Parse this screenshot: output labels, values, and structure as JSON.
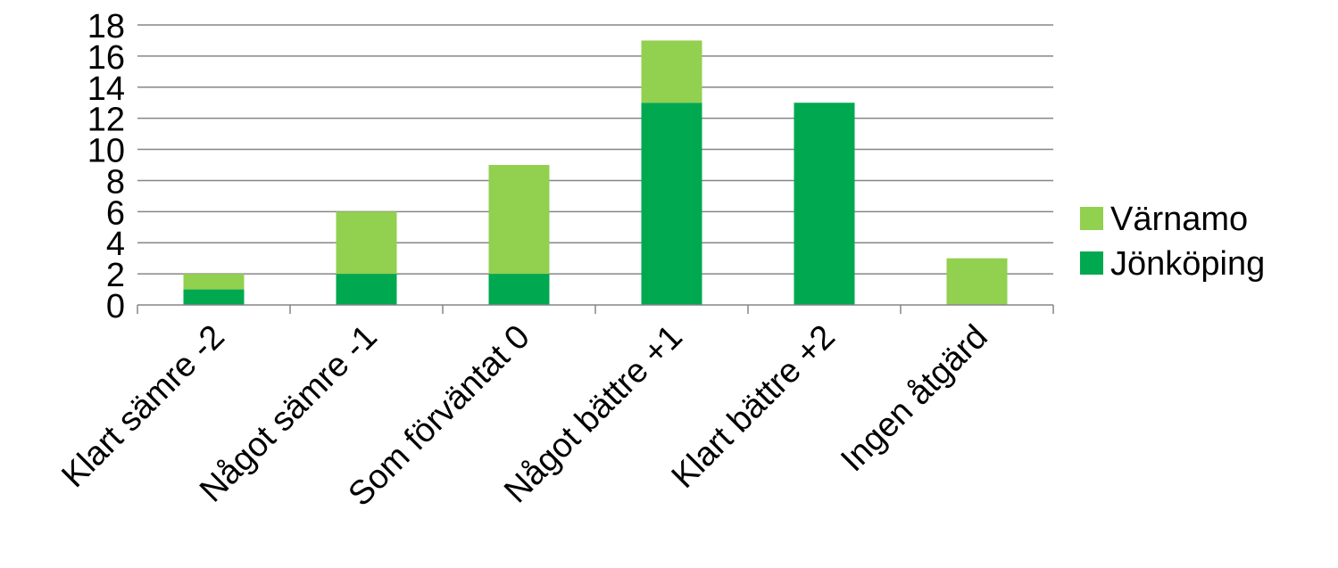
{
  "chart_data": {
    "type": "bar",
    "stacked": true,
    "categories": [
      "Klart sämre -2",
      "Något sämre -1",
      "Som förväntat 0",
      "Något bättre +1",
      "Klart bättre +2",
      "Ingen åtgärd"
    ],
    "series": [
      {
        "name": "Jönköping",
        "values": [
          1,
          2,
          2,
          13,
          13,
          0
        ],
        "color": "#00A84F"
      },
      {
        "name": "Värnamo",
        "values": [
          1,
          4,
          7,
          4,
          0,
          3
        ],
        "color": "#92D050"
      }
    ],
    "ylim": [
      0,
      18
    ],
    "yticks": [
      0,
      2,
      4,
      6,
      8,
      10,
      12,
      14,
      16,
      18
    ],
    "grid": true,
    "legend": "right",
    "legend_order": [
      "Värnamo",
      "Jönköping"
    ]
  }
}
